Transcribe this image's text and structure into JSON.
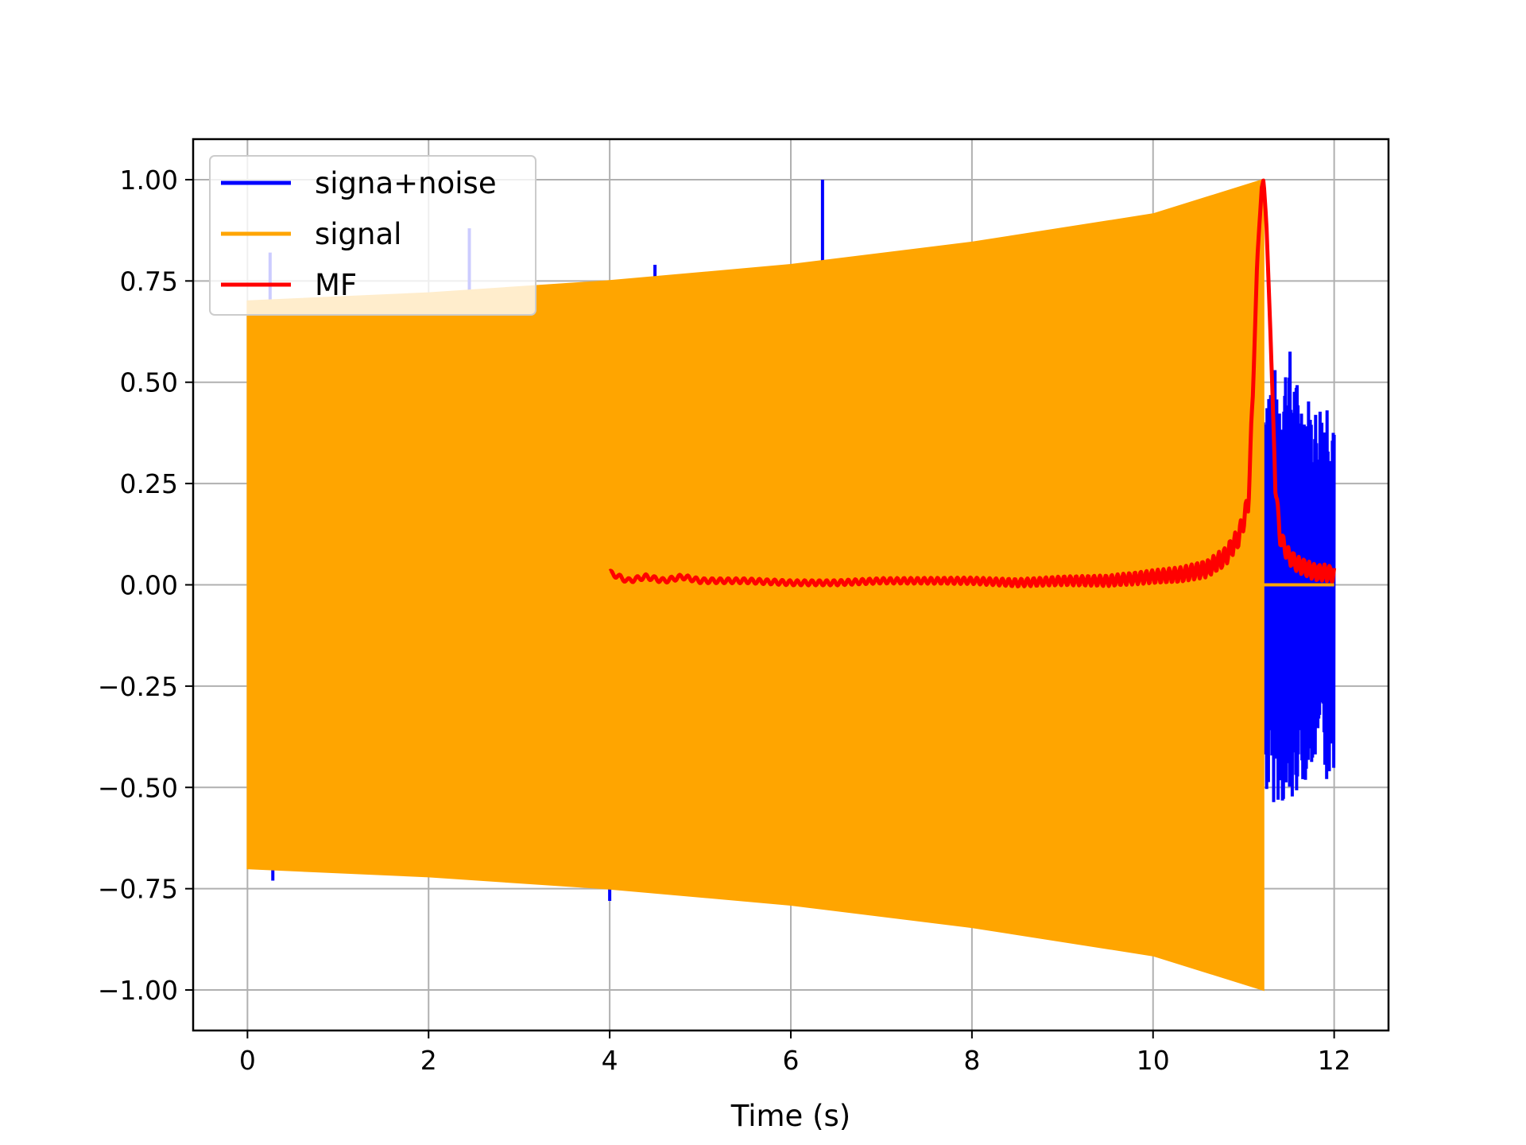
{
  "chart_data": {
    "type": "line",
    "title": "",
    "xlabel": "Time (s)",
    "ylabel": "",
    "xlim": [
      -0.6,
      12.6
    ],
    "ylim": [
      -1.1,
      1.1
    ],
    "x_ticks": [
      0,
      2,
      4,
      6,
      8,
      10,
      12
    ],
    "y_ticks": [
      1.0,
      0.75,
      0.5,
      0.25,
      0.0,
      -0.25,
      -0.5,
      -0.75,
      -1.0
    ],
    "x_tick_labels": [
      "0",
      "2",
      "4",
      "6",
      "8",
      "10",
      "12"
    ],
    "y_tick_labels": [
      "1.00",
      "0.75",
      "0.50",
      "0.25",
      "0.00",
      "−0.25",
      "−0.50",
      "−0.75",
      "−1.00"
    ],
    "grid": true,
    "legend": "upper-left",
    "series": [
      {
        "name": "signa+noise",
        "color": "#0000ff",
        "style": "noisy-oscillation",
        "spikes": [
          {
            "x": 0.25,
            "y": 0.82
          },
          {
            "x": 0.28,
            "y": -0.73
          },
          {
            "x": 2.45,
            "y": 0.88
          },
          {
            "x": 4.0,
            "y": -0.78
          },
          {
            "x": 4.5,
            "y": 0.79
          },
          {
            "x": 6.35,
            "y": 1.0
          }
        ],
        "tail_x": [
          11.22,
          11.3,
          11.4,
          11.5,
          11.6,
          11.7,
          11.8,
          11.9,
          12.0
        ],
        "tail_envelope": [
          0.52,
          0.55,
          0.53,
          0.6,
          0.5,
          0.48,
          0.45,
          0.5,
          0.47
        ]
      },
      {
        "name": "signal",
        "color": "#ffa500",
        "style": "filled-envelope",
        "x": [
          0.0,
          2.0,
          4.0,
          6.0,
          8.0,
          10.0,
          11.22
        ],
        "upper": [
          0.7,
          0.72,
          0.75,
          0.79,
          0.845,
          0.915,
          1.0
        ],
        "lower": [
          -0.7,
          -0.72,
          -0.75,
          -0.79,
          -0.845,
          -0.915,
          -1.0
        ],
        "after_end_value": 0.0,
        "after_end_x": [
          11.22,
          12.0
        ]
      },
      {
        "name": "MF",
        "color": "#ff0000",
        "style": "line",
        "x": [
          4.0,
          4.1,
          4.2,
          4.4,
          4.6,
          4.8,
          5.0,
          5.5,
          6.0,
          6.5,
          7.0,
          7.5,
          8.0,
          8.5,
          9.0,
          9.5,
          10.0,
          10.3,
          10.6,
          10.8,
          10.95,
          11.05,
          11.1,
          11.15,
          11.2,
          11.22,
          11.25,
          11.3,
          11.35,
          11.4,
          11.5,
          11.6,
          11.7,
          11.8,
          11.9,
          12.0
        ],
        "y": [
          0.03,
          0.02,
          0.01,
          0.02,
          0.01,
          0.02,
          0.01,
          0.01,
          0.005,
          0.005,
          0.01,
          0.01,
          0.01,
          0.005,
          0.01,
          0.01,
          0.02,
          0.025,
          0.04,
          0.07,
          0.12,
          0.2,
          0.45,
          0.8,
          0.98,
          1.0,
          0.9,
          0.6,
          0.25,
          0.12,
          0.07,
          0.05,
          0.04,
          0.03,
          0.03,
          0.025
        ]
      }
    ]
  }
}
